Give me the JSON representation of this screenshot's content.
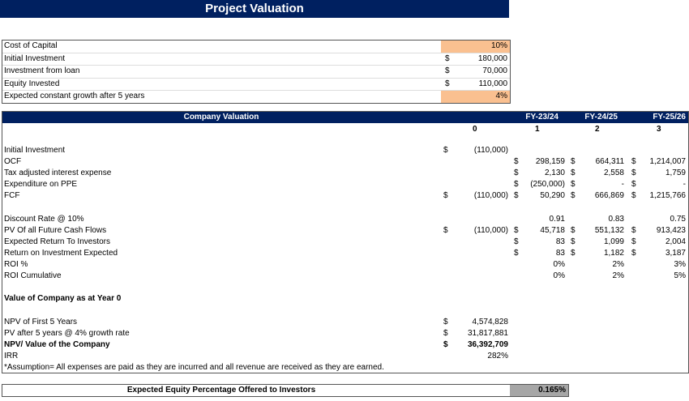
{
  "title": "Project Valuation",
  "inputs": [
    {
      "label": "Cost of Capital",
      "currency": "",
      "value": "10%",
      "highlight": true
    },
    {
      "label": "Initial Investment",
      "currency": "$",
      "value": "180,000",
      "highlight": false
    },
    {
      "label": "Investment from loan",
      "currency": "$",
      "value": "70,000",
      "highlight": false
    },
    {
      "label": "Equity Invested",
      "currency": "$",
      "value": "110,000",
      "highlight": false
    },
    {
      "label": "Expected constant growth after 5 years",
      "currency": "",
      "value": "4%",
      "highlight": true
    }
  ],
  "valuation": {
    "header": "Company Valuation",
    "periods": [
      "",
      "FY-23/24",
      "FY-24/25",
      "FY-25/26"
    ],
    "years": [
      "0",
      "1",
      "2",
      "3"
    ],
    "rows": [
      {
        "label": "Initial Investment",
        "cells": [
          [
            "$",
            "(110,000)"
          ],
          [
            "",
            ""
          ],
          [
            "",
            ""
          ],
          [
            "",
            ""
          ]
        ]
      },
      {
        "label": "OCF",
        "cells": [
          [
            "",
            ""
          ],
          [
            "$",
            "298,159"
          ],
          [
            "$",
            "664,311"
          ],
          [
            "$",
            "1,214,007"
          ]
        ]
      },
      {
        "label": "Tax adjusted interest expense",
        "cells": [
          [
            "",
            ""
          ],
          [
            "$",
            "2,130"
          ],
          [
            "$",
            "2,558"
          ],
          [
            "$",
            "1,759"
          ]
        ]
      },
      {
        "label": "Expenditure on PPE",
        "cells": [
          [
            "",
            ""
          ],
          [
            "$",
            "(250,000)"
          ],
          [
            "$",
            "-"
          ],
          [
            "$",
            "-"
          ]
        ]
      },
      {
        "label": "FCF",
        "cells": [
          [
            "$",
            "(110,000)"
          ],
          [
            "$",
            "50,290"
          ],
          [
            "$",
            "666,869"
          ],
          [
            "$",
            "1,215,766"
          ]
        ]
      },
      null,
      {
        "label": "Discount Rate @ 10%",
        "cells": [
          [
            "",
            ""
          ],
          [
            "",
            "0.91"
          ],
          [
            "",
            "0.83"
          ],
          [
            "",
            "0.75"
          ]
        ]
      },
      {
        "label": "PV Of all Future Cash Flows",
        "cells": [
          [
            "$",
            "(110,000)"
          ],
          [
            "$",
            "45,718"
          ],
          [
            "$",
            "551,132"
          ],
          [
            "$",
            "913,423"
          ]
        ]
      },
      {
        "label": "Expected Return To Investors",
        "cells": [
          [
            "",
            ""
          ],
          [
            "$",
            "83"
          ],
          [
            "$",
            "1,099"
          ],
          [
            "$",
            "2,004"
          ]
        ]
      },
      {
        "label": "Return on Investment Expected",
        "cells": [
          [
            "",
            ""
          ],
          [
            "$",
            "83"
          ],
          [
            "$",
            "1,182"
          ],
          [
            "$",
            "3,187"
          ]
        ]
      },
      {
        "label": "ROI %",
        "cells": [
          [
            "",
            ""
          ],
          [
            "",
            "0%"
          ],
          [
            "",
            "2%"
          ],
          [
            "",
            "3%"
          ]
        ]
      },
      {
        "label": "ROI Cumulative",
        "cells": [
          [
            "",
            ""
          ],
          [
            "",
            "0%"
          ],
          [
            "",
            "2%"
          ],
          [
            "",
            "5%"
          ]
        ]
      },
      null,
      {
        "label": "Value of Company as at Year 0",
        "bold": true,
        "cells": []
      },
      null,
      {
        "label": "NPV of First 5 Years",
        "cells": [
          [
            "$",
            "4,574,828"
          ]
        ]
      },
      {
        "label": "PV after 5 years @ 4% growth rate",
        "cells": [
          [
            "$",
            "31,817,881"
          ]
        ]
      },
      {
        "label": "NPV/ Value of the Company",
        "bold": true,
        "cells": [
          [
            "$",
            "36,392,709"
          ]
        ]
      },
      {
        "label": "IRR",
        "cells": [
          [
            "",
            "282%"
          ]
        ]
      },
      {
        "label": "*Assumption= All expenses are paid as they are incurred and all revenue are received as they are earned.",
        "cells": []
      }
    ]
  },
  "equity": {
    "label": "Expected Equity Percentage Offered to Investors",
    "value": "0.165%"
  },
  "colors": {
    "navy": "#002060",
    "input_highlight": "#fac090",
    "grey": "#a6a6a6"
  }
}
